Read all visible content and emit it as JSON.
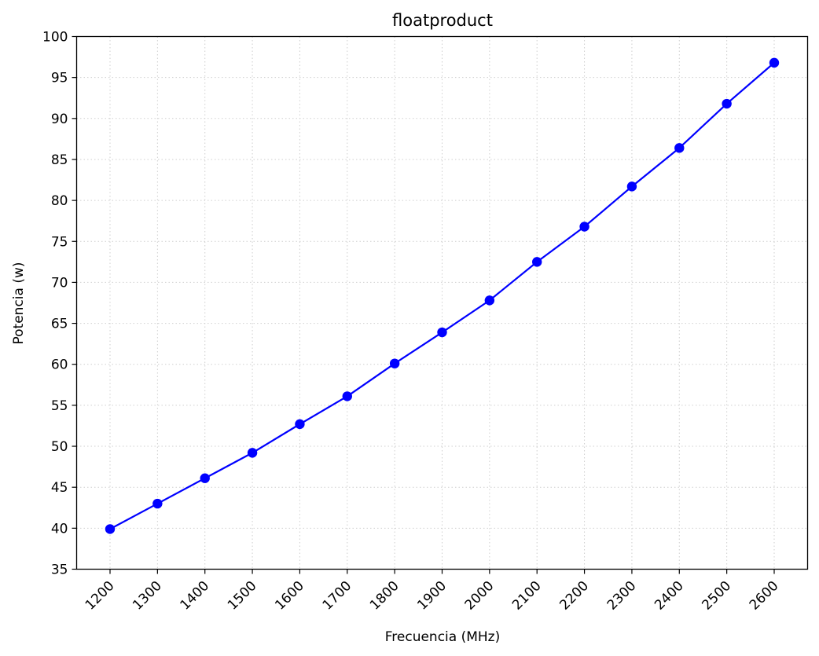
{
  "chart_data": {
    "type": "line",
    "title": "floatproduct",
    "xlabel": "Frecuencia (MHz)",
    "ylabel": "Potencia (w)",
    "x": [
      1200,
      1300,
      1400,
      1500,
      1600,
      1700,
      1800,
      1900,
      2000,
      2100,
      2200,
      2300,
      2400,
      2500,
      2600
    ],
    "x_tick_labels": [
      "1200",
      "1300",
      "1400",
      "1500",
      "1600",
      "1700",
      "1800",
      "1900",
      "2000",
      "2100",
      "2200",
      "2300",
      "2400",
      "2500",
      "2600"
    ],
    "series": [
      {
        "values": [
          39.9,
          43.0,
          46.1,
          49.2,
          52.7,
          56.1,
          60.1,
          63.9,
          67.8,
          72.5,
          76.8,
          81.7,
          86.4,
          91.8,
          96.8
        ],
        "color": "#0000ff",
        "marker": "circle"
      }
    ],
    "ylim": [
      35,
      100
    ],
    "y_ticks": [
      35,
      40,
      45,
      50,
      55,
      60,
      65,
      70,
      75,
      80,
      85,
      90,
      95,
      100
    ],
    "y_tick_labels": [
      "35",
      "40",
      "45",
      "50",
      "55",
      "60",
      "65",
      "70",
      "75",
      "80",
      "85",
      "90",
      "95",
      "100"
    ],
    "grid": true,
    "x_tick_rotation": "45deg"
  }
}
